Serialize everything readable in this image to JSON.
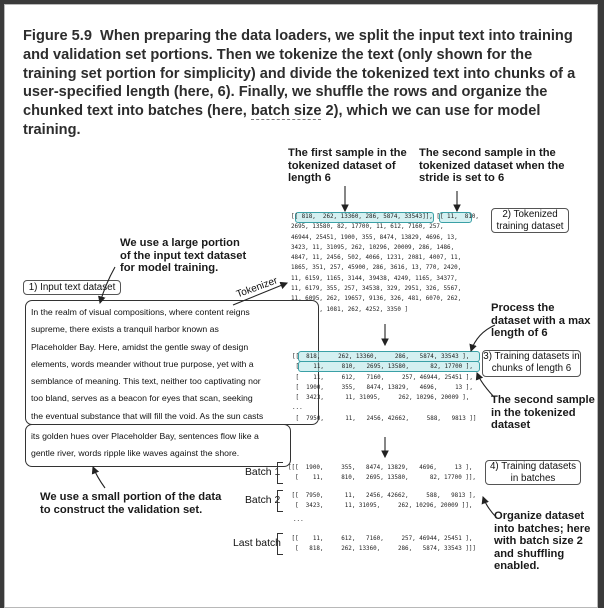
{
  "caption": {
    "lead": "Figure 5.9",
    "text_before": "When preparing the data loaders, we split the input text into training and validation set portions. Then we tokenize the text (only shown for the training set portion for simplicity) and divide the tokenized text into chunks of a user-specified length (here, 6). Finally, we shuffle the rows and organize the chunked text into batches (here, ",
    "underlined": "batch size",
    "text_after": " 2), which we can use for model training."
  },
  "labels": {
    "first_sample": "The first sample in the tokenized dataset of length 6",
    "second_sample_stride": "The second sample in the tokenized dataset when the stride is set to 6",
    "large_portion": "We use a large portion of the input text dataset for model training.",
    "tokenizer": "Tokenizer",
    "process": "Process the dataset with a max length of 6",
    "second_sample": "The second sample in the tokenized dataset",
    "small_portion": "We use a small portion of the data to construct the validation set.",
    "organize": "Organize dataset into batches; here with batch size 2 and shuffling enabled."
  },
  "boxes": {
    "input_text_dataset": "1) Input text dataset",
    "tokenized_training": "2) Tokenized training dataset",
    "training_datasets": "3) Training datasets in chunks of length 6",
    "training_batches": "4) Training datasets in batches"
  },
  "input_text": {
    "training_lines": [
      "In the realm of visual compositions, where content reigns",
      "supreme, there exists a tranquil harbor known as",
      "Placeholder Bay. Here, amidst the gentle sway of design",
      "elements, words meander without true purpose, yet with a",
      "semblance of meaning. This text, neither too captivating nor",
      "too bland, serves as a beacon for eyes that scan, seeking",
      "the eventual substance that will fill the void. As the sun casts"
    ],
    "validation_lines": [
      "its golden hues over Placeholder Bay, sentences flow like a",
      "gentle river, words ripple like waves against the shore."
    ]
  },
  "tokenized_text": [
    "[[ 818,  262, 13360, 286, 5874, 33543]], [[ 11,  810,",
    "2695, 13580, 82, 17700, 11, 612, 7160, 257,",
    "46944, 25451, 1900, 355, 8474, 13829, 4696, 13,",
    "3423, 11, 31095, 262, 10296, 20009, 286, 1486,",
    "4847, 11, 2456, 502, 4066, 1231, 2081, 4007, 11,",
    "1865, 351, 257, 45900, 286, 3616, 13, 770, 2420,",
    "11, 6159, 1165, 3144, 39438, 4249, 1165, 34377,",
    "11, 6179, 355, 257, 34538, 329, 2951, 326, 5567,",
    "11, 6095, 262, 19657, 9136, 326, 481, 6070, 262,",
    "7951, 13, 1081, 262, 4252, 3350 ]"
  ],
  "chunks": [
    "[[  818,     262, 13360,     286,   5874, 33543 ],",
    " [    11,     810,   2695, 13580,      82, 17700 ],",
    " [    11,     612,   7160,     257, 46944, 25451 ],",
    " [  1900,     355,   8474, 13829,   4696,     13 ],",
    " [  3423,      11, 31095,     262, 10296, 20009 ],",
    "...",
    " [  7950,      11,   2456, 42662,     588,   9813 ]]"
  ],
  "batches": [
    {
      "label": "Batch 1",
      "rows": [
        "[[[  1900,     355,   8474, 13829,   4696,     13 ],",
        "  [    11,     810,   2695, 13580,      82, 17700 ]],"
      ]
    },
    {
      "label": "Batch 2",
      "rows": [
        " [[  7950,      11,   2456, 42662,     588,   9813 ],",
        "  [  3423,      11, 31095,     262, 10296, 20009 ]],"
      ]
    },
    {
      "label": "Last batch",
      "rows": [
        " [[    11,     612,   7160,     257, 46944, 25451 ],",
        "  [   818,     262, 13360,     286,   5874, 33543 ]]]"
      ]
    }
  ],
  "ellipsis": "..."
}
